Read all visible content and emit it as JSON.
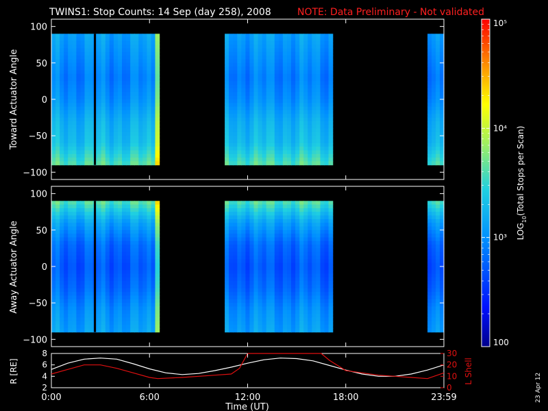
{
  "title": "TWINS1: Stop Counts: 14 Sep (day 258), 2008",
  "note": "NOTE: Data Preliminary - Not validated",
  "footer_date": "23 Apr 12",
  "colors": {
    "note": "#ff2020",
    "lshell": "#e01010",
    "rline": "#ffffff",
    "bg": "#000000"
  },
  "colorbar": {
    "label_prefix": "LOG",
    "label_sub": "10",
    "label_suffix": "(Total Stops per Scan)",
    "ticks": [
      "10⁵",
      "10⁴",
      "10³",
      "100"
    ],
    "scale": "log",
    "range": [
      100,
      100000
    ]
  },
  "chart_data": [
    {
      "type": "heatmap",
      "panel": "top",
      "ylabel": "Toward Actuator Angle",
      "ylim": [
        -110,
        110
      ],
      "yticks": [
        "100",
        "50",
        "0",
        "−50",
        "−100"
      ],
      "x_range_hours": [
        0,
        24
      ],
      "coverage_hours": [
        [
          0,
          6.6
        ],
        [
          10.6,
          17.2
        ],
        [
          23.0,
          24
        ]
      ],
      "profile": [
        {
          "angle": 88,
          "log": 3.1
        },
        {
          "angle": 60,
          "log": 3.0
        },
        {
          "angle": 30,
          "log": 2.9
        },
        {
          "angle": 0,
          "log": 3.0
        },
        {
          "angle": -30,
          "log": 3.2
        },
        {
          "angle": -60,
          "log": 3.3
        },
        {
          "angle": -88,
          "log": 3.6
        }
      ]
    },
    {
      "type": "heatmap",
      "panel": "middle",
      "ylabel": "Away Actuator Angle",
      "ylim": [
        -110,
        110
      ],
      "yticks": [
        "100",
        "50",
        "0",
        "−50",
        "−100"
      ],
      "x_range_hours": [
        0,
        24
      ],
      "coverage_hours": [
        [
          0,
          6.6
        ],
        [
          10.6,
          17.2
        ],
        [
          23.0,
          24
        ]
      ],
      "profile": [
        {
          "angle": 88,
          "log": 3.6
        },
        {
          "angle": 60,
          "log": 3.1
        },
        {
          "angle": 30,
          "log": 2.8
        },
        {
          "angle": 0,
          "log": 2.7
        },
        {
          "angle": -30,
          "log": 2.8
        },
        {
          "angle": -60,
          "log": 3.0
        },
        {
          "angle": -88,
          "log": 3.1
        }
      ]
    },
    {
      "type": "line",
      "panel": "bottom",
      "xlabel": "Time (UT)",
      "xticks": [
        "0:00",
        "6:00",
        "12:00",
        "18:00",
        "23:59"
      ],
      "x_hours": [
        0,
        6,
        12,
        18,
        24
      ],
      "ylabel_left": "R [RE]",
      "ylim_left": [
        2,
        8
      ],
      "yticks_left": [
        "8",
        "6",
        "4",
        "2"
      ],
      "ylabel_right": "L Shell",
      "ylim_right": [
        0,
        30
      ],
      "yticks_right": [
        "30",
        "20",
        "10",
        "0"
      ],
      "series": [
        {
          "name": "R",
          "axis": "left",
          "x": [
            0,
            1,
            2,
            3,
            4,
            5,
            6,
            7,
            8,
            9,
            10,
            11,
            12,
            13,
            14,
            15,
            16,
            17,
            18,
            19,
            20,
            21,
            22,
            23,
            24
          ],
          "y": [
            5.2,
            6.3,
            7.0,
            7.2,
            7.0,
            6.2,
            5.3,
            4.6,
            4.3,
            4.5,
            5.0,
            5.6,
            6.3,
            6.9,
            7.2,
            7.1,
            6.7,
            5.9,
            5.1,
            4.4,
            4.0,
            4.0,
            4.4,
            5.1,
            6.0
          ]
        },
        {
          "name": "L Shell",
          "axis": "right",
          "x": [
            0,
            1,
            2,
            3,
            4,
            5,
            6,
            6.5,
            8,
            10,
            11,
            11.5,
            12,
            16.5,
            17,
            18,
            19,
            20,
            21,
            22,
            23,
            24
          ],
          "y": [
            12,
            16,
            20,
            20,
            17,
            13,
            9,
            8,
            9,
            11,
            12,
            17,
            30,
            30,
            24,
            15,
            13,
            11,
            10,
            9,
            8,
            13
          ]
        }
      ]
    }
  ]
}
